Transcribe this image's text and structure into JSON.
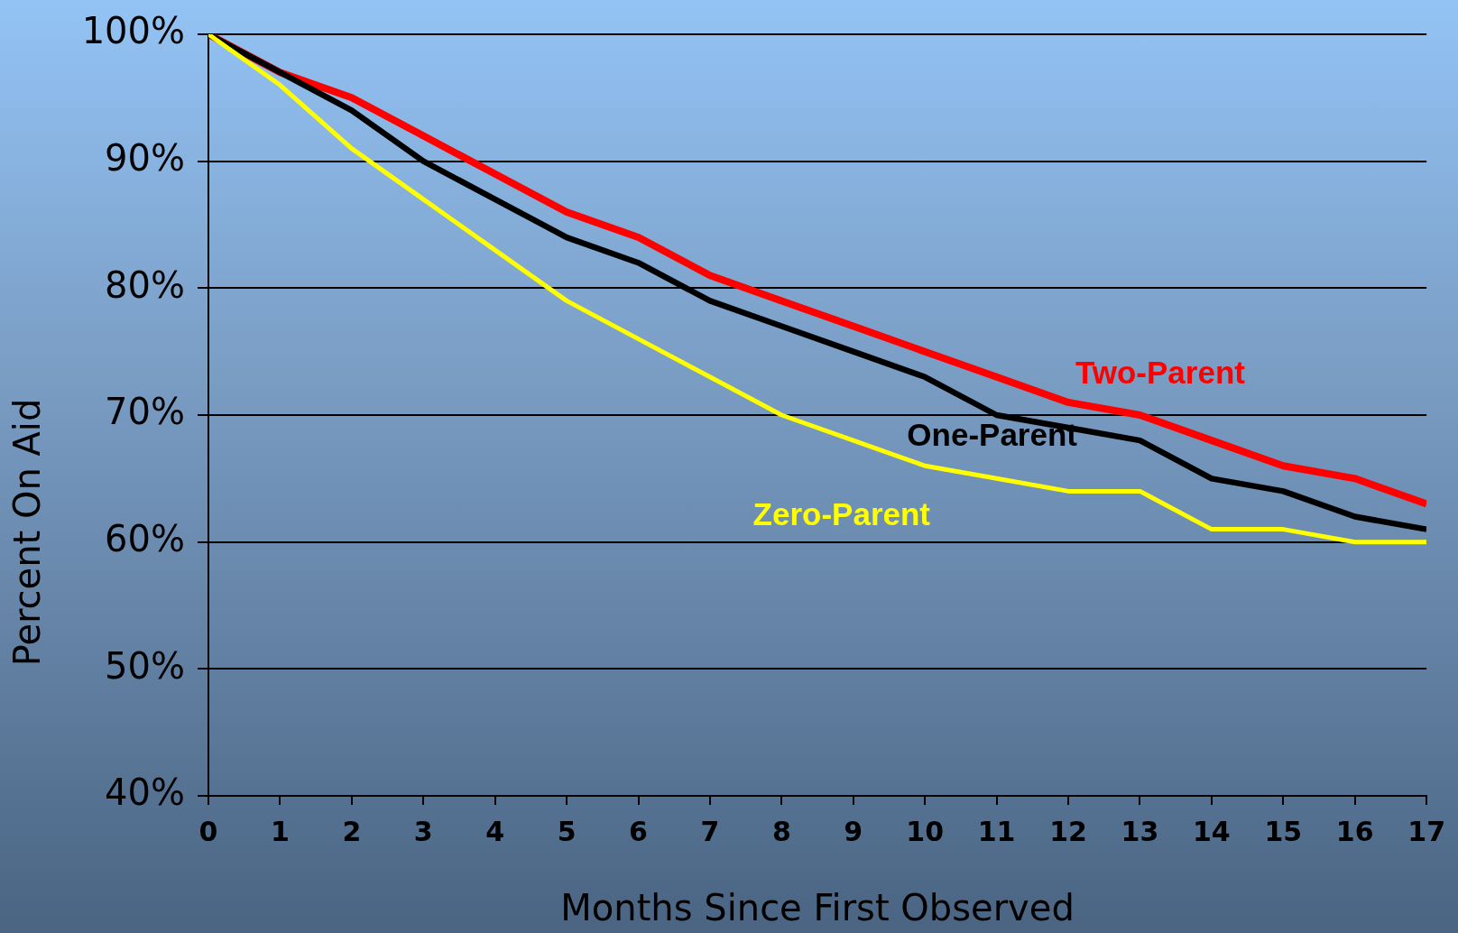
{
  "chart_data": {
    "type": "line",
    "xlabel": "Months Since First Observed",
    "ylabel": "Percent On Aid",
    "x": [
      0,
      1,
      2,
      3,
      4,
      5,
      6,
      7,
      8,
      9,
      10,
      11,
      12,
      13,
      14,
      15,
      16,
      17
    ],
    "xlim": [
      0,
      17
    ],
    "xticks": [
      0,
      1,
      2,
      3,
      4,
      5,
      6,
      7,
      8,
      9,
      10,
      11,
      12,
      13,
      14,
      15,
      16,
      17
    ],
    "ylim": [
      40,
      100
    ],
    "yticks": [
      {
        "value": 40,
        "label": "40%"
      },
      {
        "value": 50,
        "label": "50%"
      },
      {
        "value": 60,
        "label": "60%"
      },
      {
        "value": 70,
        "label": "70%"
      },
      {
        "value": 80,
        "label": "80%"
      },
      {
        "value": 90,
        "label": "90%"
      },
      {
        "value": 100,
        "label": "100%"
      }
    ],
    "grid": "y",
    "legend": false,
    "marker": "none",
    "line_style": "solid",
    "series": [
      {
        "name": "Two-Parent",
        "color": "#ff0000",
        "values": [
          100,
          97,
          95,
          92,
          89,
          86,
          84,
          81,
          79,
          77,
          75,
          73,
          71,
          70,
          68,
          66,
          65,
          63
        ]
      },
      {
        "name": "One-Parent",
        "color": "#000000",
        "values": [
          100,
          97,
          94,
          90,
          87,
          84,
          82,
          79,
          77,
          75,
          73,
          70,
          69,
          68,
          65,
          64,
          62,
          61
        ]
      },
      {
        "name": "Zero-Parent",
        "color": "#ffff00",
        "values": [
          100,
          96,
          91,
          87,
          83,
          79,
          76,
          73,
          70,
          68,
          66,
          65,
          64,
          64,
          61,
          61,
          60,
          60
        ]
      }
    ]
  }
}
